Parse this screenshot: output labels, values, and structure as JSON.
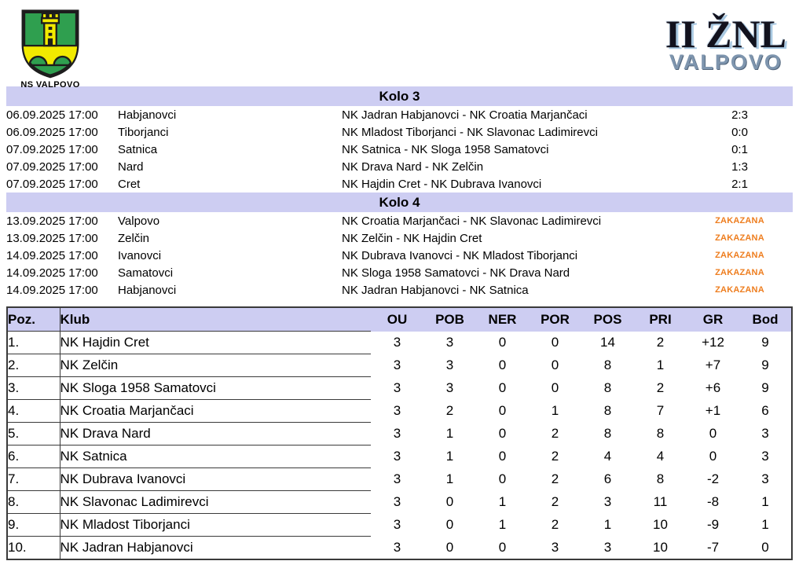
{
  "header": {
    "club_name": "NS VALPOVO",
    "league_title": "II ŽNL",
    "league_subtitle": "VALPOVO"
  },
  "colors": {
    "section_band_bg": "#cdcdf2",
    "scheduled_text": "#ee7d1e",
    "crest_green": "#2f9f4f",
    "crest_yellow": "#f2ea00",
    "league_title": "#12121e",
    "league_title_shadow": "#a9c9e2",
    "league_subtitle": "#7e95ae",
    "table_border": "#3a3a3a"
  },
  "rounds": [
    {
      "title": "Kolo 3",
      "matches": [
        {
          "datetime": "06.09.2025 17:00",
          "venue": "Habjanovci",
          "teams": "NK Jadran Habjanovci - NK Croatia Marjančaci",
          "result": "2:3",
          "scheduled": false
        },
        {
          "datetime": "06.09.2025 17:00",
          "venue": "Tiborjanci",
          "teams": "NK Mladost Tiborjanci - NK Slavonac Ladimirevci",
          "result": "0:0",
          "scheduled": false
        },
        {
          "datetime": "07.09.2025 17:00",
          "venue": "Satnica",
          "teams": "NK Satnica - NK Sloga 1958 Samatovci",
          "result": "0:1",
          "scheduled": false
        },
        {
          "datetime": "07.09.2025 17:00",
          "venue": "Nard",
          "teams": "NK Drava Nard - NK Zelčin",
          "result": "1:3",
          "scheduled": false
        },
        {
          "datetime": "07.09.2025 17:00",
          "venue": "Cret",
          "teams": "NK Hajdin Cret - NK Dubrava Ivanovci",
          "result": "2:1",
          "scheduled": false
        }
      ]
    },
    {
      "title": "Kolo 4",
      "matches": [
        {
          "datetime": "13.09.2025 17:00",
          "venue": "Valpovo",
          "teams": "NK Croatia Marjančaci - NK Slavonac Ladimirevci",
          "result": "ZAKAZANA",
          "scheduled": true
        },
        {
          "datetime": "13.09.2025 17:00",
          "venue": "Zelčin",
          "teams": "NK Zelčin - NK Hajdin Cret",
          "result": "ZAKAZANA",
          "scheduled": true
        },
        {
          "datetime": "14.09.2025 17:00",
          "venue": "Ivanovci",
          "teams": "NK Dubrava Ivanovci - NK Mladost Tiborjanci",
          "result": "ZAKAZANA",
          "scheduled": true
        },
        {
          "datetime": "14.09.2025 17:00",
          "venue": "Samatovci",
          "teams": "NK Sloga 1958 Samatovci - NK Drava Nard",
          "result": "ZAKAZANA",
          "scheduled": true
        },
        {
          "datetime": "14.09.2025 17:00",
          "venue": "Habjanovci",
          "teams": "NK Jadran Habjanovci - NK Satnica",
          "result": "ZAKAZANA",
          "scheduled": true
        }
      ]
    }
  ],
  "standings": {
    "columns": [
      "Poz.",
      "Klub",
      "OU",
      "POB",
      "NER",
      "POR",
      "POS",
      "PRI",
      "GR",
      "Bod"
    ],
    "rows": [
      {
        "pos": "1.",
        "club": "NK Hajdin Cret",
        "stats": [
          "3",
          "3",
          "0",
          "0",
          "14",
          "2",
          "+12",
          "9"
        ]
      },
      {
        "pos": "2.",
        "club": "NK Zelčin",
        "stats": [
          "3",
          "3",
          "0",
          "0",
          "8",
          "1",
          "+7",
          "9"
        ]
      },
      {
        "pos": "3.",
        "club": "NK Sloga 1958 Samatovci",
        "stats": [
          "3",
          "3",
          "0",
          "0",
          "8",
          "2",
          "+6",
          "9"
        ]
      },
      {
        "pos": "4.",
        "club": "NK Croatia Marjančaci",
        "stats": [
          "3",
          "2",
          "0",
          "1",
          "8",
          "7",
          "+1",
          "6"
        ]
      },
      {
        "pos": "5.",
        "club": "NK Drava Nard",
        "stats": [
          "3",
          "1",
          "0",
          "2",
          "8",
          "8",
          "0",
          "3"
        ]
      },
      {
        "pos": "6.",
        "club": "NK Satnica",
        "stats": [
          "3",
          "1",
          "0",
          "2",
          "4",
          "4",
          "0",
          "3"
        ]
      },
      {
        "pos": "7.",
        "club": "NK Dubrava Ivanovci",
        "stats": [
          "3",
          "1",
          "0",
          "2",
          "6",
          "8",
          "-2",
          "3"
        ]
      },
      {
        "pos": "8.",
        "club": "NK Slavonac Ladimirevci",
        "stats": [
          "3",
          "0",
          "1",
          "2",
          "3",
          "11",
          "-8",
          "1"
        ]
      },
      {
        "pos": "9.",
        "club": "NK Mladost Tiborjanci",
        "stats": [
          "3",
          "0",
          "1",
          "2",
          "1",
          "10",
          "-9",
          "1"
        ]
      },
      {
        "pos": "10.",
        "club": "NK Jadran Habjanovci",
        "stats": [
          "3",
          "0",
          "0",
          "3",
          "3",
          "10",
          "-7",
          "0"
        ]
      }
    ]
  }
}
